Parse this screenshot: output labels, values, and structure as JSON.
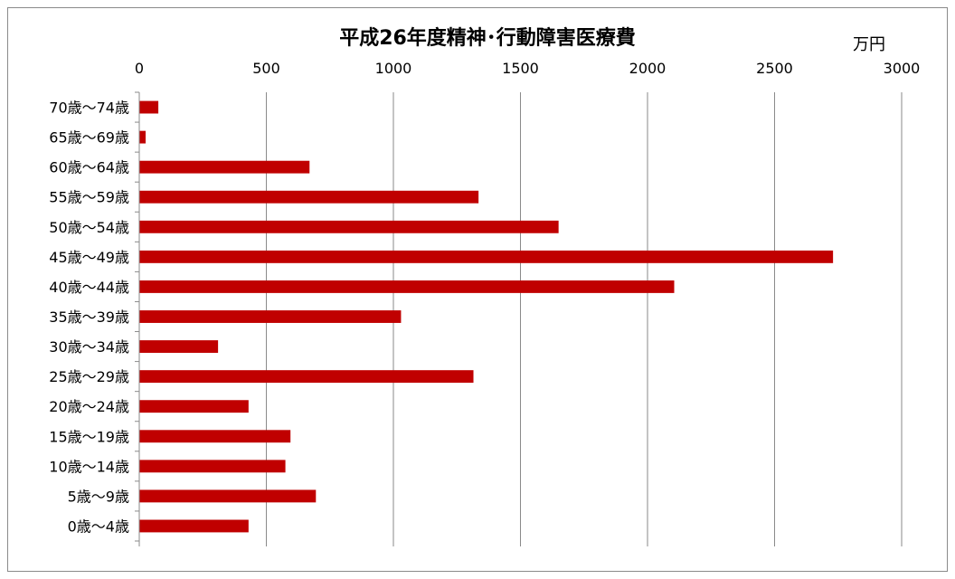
{
  "chart_data": {
    "type": "bar",
    "orientation": "horizontal",
    "title": "平成26年度精神･行動障害医療費",
    "unit_label": "万円",
    "xlim": [
      0,
      3000
    ],
    "x_ticks": [
      0,
      500,
      1000,
      1500,
      2000,
      2500,
      3000
    ],
    "x_axis_position": "top",
    "grid": true,
    "bar_color": "#c00000",
    "categories": [
      "70歳～74歳",
      "65歳～69歳",
      "60歳～64歳",
      "55歳～59歳",
      "50歳～54歳",
      "45歳～49歳",
      "40歳～44歳",
      "35歳～39歳",
      "30歳～34歳",
      "25歳～29歳",
      "20歳～24歳",
      "15歳～19歳",
      "10歳～14歳",
      "5歳～9歳",
      "0歳～4歳"
    ],
    "values": [
      75,
      25,
      670,
      1335,
      1650,
      2730,
      2105,
      1030,
      310,
      1315,
      430,
      595,
      575,
      695,
      430
    ]
  }
}
